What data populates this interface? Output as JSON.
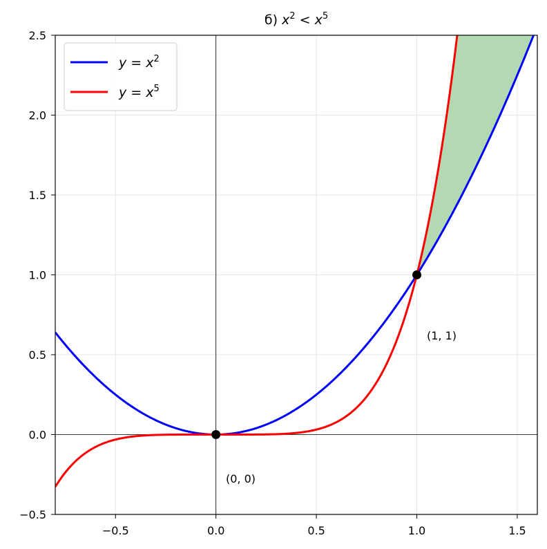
{
  "chart_data": {
    "type": "line",
    "title_main": "б) ",
    "title_math": [
      "x",
      "2",
      " < ",
      "x",
      "5"
    ],
    "xlim": [
      -0.8,
      1.6
    ],
    "ylim": [
      -0.5,
      2.5
    ],
    "x_ticks": [
      -0.5,
      0.0,
      0.5,
      1.0,
      1.5
    ],
    "x_tick_labels": [
      "−0.5",
      "0.0",
      "0.5",
      "1.0",
      "1.5"
    ],
    "y_ticks": [
      -0.5,
      0.0,
      0.5,
      1.0,
      1.5,
      2.0,
      2.5
    ],
    "y_tick_labels": [
      "−0.5",
      "0.0",
      "0.5",
      "1.0",
      "1.5",
      "2.0",
      "2.5"
    ],
    "grid": true,
    "legend_position": "top-left",
    "series": [
      {
        "name": "y = x^2",
        "legend_base": "y = x",
        "legend_exp": "2",
        "function": "x^2",
        "exponent": 2,
        "color": "#0000ff"
      },
      {
        "name": "y = x^5",
        "legend_base": "y = x",
        "legend_exp": "5",
        "function": "x^5",
        "exponent": 5,
        "color": "#ff0000"
      }
    ],
    "shaded_region": {
      "x_from": 1.0,
      "between": [
        "x^2",
        "x^5"
      ],
      "color": "#b2d9b2"
    },
    "points": [
      {
        "x": 0,
        "y": 0,
        "label": "(0, 0)"
      },
      {
        "x": 1,
        "y": 1,
        "label": "(1, 1)"
      }
    ]
  }
}
